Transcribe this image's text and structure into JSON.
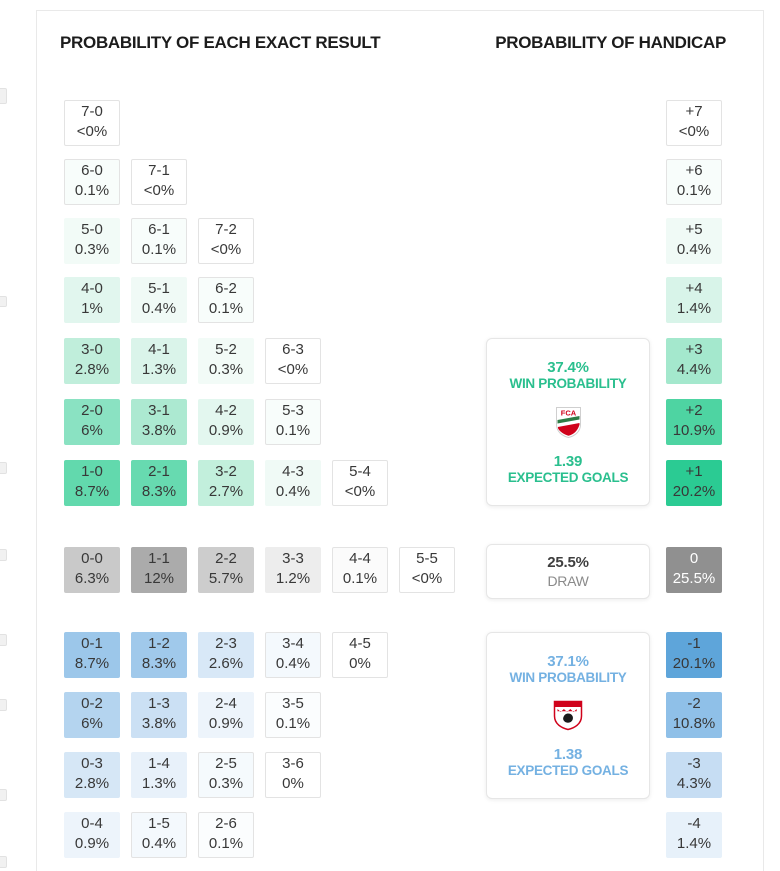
{
  "chart_data": {
    "type": "heatmap",
    "title": "PROBABILITY OF EACH EXACT RESULT",
    "home_rows": [
      [
        {
          "score": "7-0",
          "prob": "<0%",
          "bg": "#ffffff"
        }
      ],
      [
        {
          "score": "6-0",
          "prob": "0.1%",
          "bg": "#f8fdfb"
        },
        {
          "score": "7-1",
          "prob": "<0%",
          "bg": "#ffffff"
        }
      ],
      [
        {
          "score": "5-0",
          "prob": "0.3%",
          "bg": "#f2fbf7"
        },
        {
          "score": "6-1",
          "prob": "0.1%",
          "bg": "#f8fdfb"
        },
        {
          "score": "7-2",
          "prob": "<0%",
          "bg": "#ffffff"
        }
      ],
      [
        {
          "score": "4-0",
          "prob": "1%",
          "bg": "#e1f6ee"
        },
        {
          "score": "5-1",
          "prob": "0.4%",
          "bg": "#f0faf6"
        },
        {
          "score": "6-2",
          "prob": "0.1%",
          "bg": "#f8fdfb"
        }
      ],
      [
        {
          "score": "3-0",
          "prob": "2.8%",
          "bg": "#c0eedb"
        },
        {
          "score": "4-1",
          "prob": "1.3%",
          "bg": "#daf4ea"
        },
        {
          "score": "5-2",
          "prob": "0.3%",
          "bg": "#f2fbf7"
        },
        {
          "score": "6-3",
          "prob": "<0%",
          "bg": "#ffffff"
        }
      ],
      [
        {
          "score": "2-0",
          "prob": "6%",
          "bg": "#8ae2c2"
        },
        {
          "score": "3-1",
          "prob": "3.8%",
          "bg": "#ace9d1"
        },
        {
          "score": "4-2",
          "prob": "0.9%",
          "bg": "#e3f7ef"
        },
        {
          "score": "5-3",
          "prob": "0.1%",
          "bg": "#f8fdfb"
        }
      ],
      [
        {
          "score": "1-0",
          "prob": "8.7%",
          "bg": "#62d9ad"
        },
        {
          "score": "2-1",
          "prob": "8.3%",
          "bg": "#67dab0"
        },
        {
          "score": "3-2",
          "prob": "2.7%",
          "bg": "#c2efdc"
        },
        {
          "score": "4-3",
          "prob": "0.4%",
          "bg": "#f0faf6"
        },
        {
          "score": "5-4",
          "prob": "<0%",
          "bg": "#ffffff"
        }
      ]
    ],
    "draw_row": [
      {
        "score": "0-0",
        "prob": "6.3%",
        "bg": "#c9c9c9"
      },
      {
        "score": "1-1",
        "prob": "12%",
        "bg": "#ababab"
      },
      {
        "score": "2-2",
        "prob": "5.7%",
        "bg": "#cdcdcd"
      },
      {
        "score": "3-3",
        "prob": "1.2%",
        "bg": "#ededed"
      },
      {
        "score": "4-4",
        "prob": "0.1%",
        "bg": "#fbfbfb"
      },
      {
        "score": "5-5",
        "prob": "<0%",
        "bg": "#ffffff"
      }
    ],
    "away_rows": [
      [
        {
          "score": "0-1",
          "prob": "8.7%",
          "bg": "#9cc7ea"
        },
        {
          "score": "1-2",
          "prob": "8.3%",
          "bg": "#a0c9eb"
        },
        {
          "score": "2-3",
          "prob": "2.6%",
          "bg": "#d8e8f7"
        },
        {
          "score": "3-4",
          "prob": "0.4%",
          "bg": "#f4f9fd"
        },
        {
          "score": "4-5",
          "prob": "0%",
          "bg": "#ffffff"
        }
      ],
      [
        {
          "score": "0-2",
          "prob": "6%",
          "bg": "#b4d4ef"
        },
        {
          "score": "1-3",
          "prob": "3.8%",
          "bg": "#cbe0f4"
        },
        {
          "score": "2-4",
          "prob": "0.9%",
          "bg": "#edf4fb"
        },
        {
          "score": "3-5",
          "prob": "0.1%",
          "bg": "#fbfdfe"
        }
      ],
      [
        {
          "score": "0-3",
          "prob": "2.8%",
          "bg": "#d6e7f6"
        },
        {
          "score": "1-4",
          "prob": "1.3%",
          "bg": "#e8f1fa"
        },
        {
          "score": "2-5",
          "prob": "0.3%",
          "bg": "#f5fafd"
        },
        {
          "score": "3-6",
          "prob": "0%",
          "bg": "#ffffff"
        }
      ],
      [
        {
          "score": "0-4",
          "prob": "0.9%",
          "bg": "#edf4fb"
        },
        {
          "score": "1-5",
          "prob": "0.4%",
          "bg": "#f4f9fd"
        },
        {
          "score": "2-6",
          "prob": "0.1%",
          "bg": "#fbfdfe"
        }
      ]
    ],
    "handicap": {
      "type": "column",
      "title": "PROBABILITY OF HANDICAP",
      "cells": [
        {
          "label": "+7",
          "prob": "<0%",
          "bg": "#ffffff"
        },
        {
          "label": "+6",
          "prob": "0.1%",
          "bg": "#f8fdfb"
        },
        {
          "label": "+5",
          "prob": "0.4%",
          "bg": "#f0faf6"
        },
        {
          "label": "+4",
          "prob": "1.4%",
          "bg": "#d8f4e9"
        },
        {
          "label": "+3",
          "prob": "4.4%",
          "bg": "#a4e8cd"
        },
        {
          "label": "+2",
          "prob": "10.9%",
          "bg": "#4ed4a2"
        },
        {
          "label": "+1",
          "prob": "20.2%",
          "bg": "#2bcb93"
        },
        {
          "label": "0",
          "prob": "25.5%",
          "bg": "#909090",
          "fg": "#ffffff"
        },
        {
          "label": "-1",
          "prob": "20.1%",
          "bg": "#5ea5da"
        },
        {
          "label": "-2",
          "prob": "10.8%",
          "bg": "#8fc0e8"
        },
        {
          "label": "-3",
          "prob": "4.3%",
          "bg": "#c6ddf3"
        },
        {
          "label": "-4",
          "prob": "1.4%",
          "bg": "#e7f1fa"
        }
      ]
    }
  },
  "panels": {
    "home": {
      "win_prob": "37.4%",
      "win_label": "WIN PROBABILITY",
      "expected": "1.39",
      "expected_label": "EXPECTED GOALS",
      "accent": "#2abf8e",
      "crest_icon": "augsburg-crest-icon"
    },
    "draw": {
      "prob": "25.5%",
      "label": "DRAW",
      "text_color": "#3f3f3f",
      "label_color": "#8a8a8a"
    },
    "away": {
      "win_prob": "37.1%",
      "win_label": "WIN PROBABILITY",
      "expected": "1.38",
      "expected_label": "EXPECTED GOALS",
      "accent": "#74b1e2",
      "crest_icon": "koln-crest-icon"
    }
  }
}
